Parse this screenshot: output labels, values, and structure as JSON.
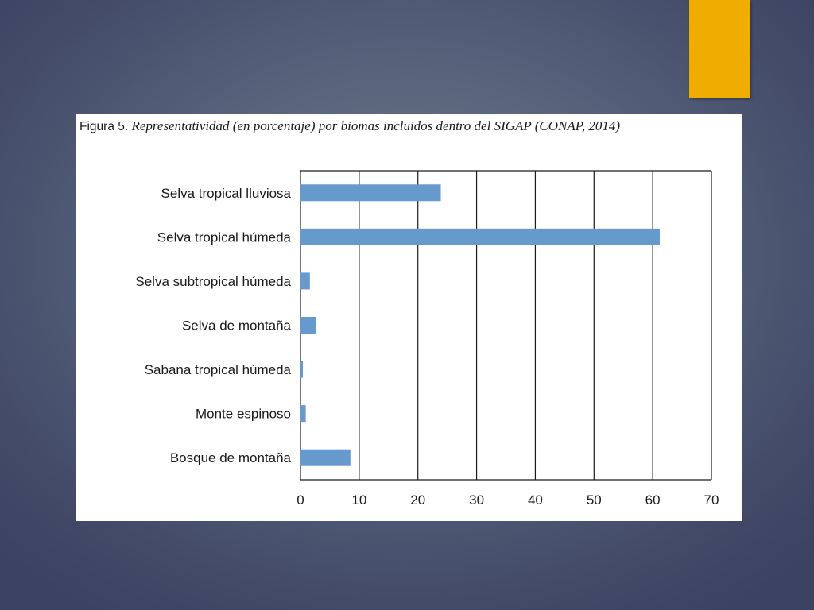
{
  "figure": {
    "caption_label": "Figura 5.",
    "caption_text": "Representatividad (en porcentaje) por biomas incluidos dentro del SIGAP (CONAP, 2014)"
  },
  "colors": {
    "bar": "#6699cc",
    "accent": "#f0ad00",
    "grid": "#1a1a1a"
  },
  "chart_data": {
    "type": "bar",
    "orientation": "horizontal",
    "categories": [
      "Selva tropical lluviosa",
      "Selva tropical húmeda",
      "Selva subtropical húmeda",
      "Selva de montaña",
      "Sabana tropical húmeda",
      "Monte espinoso",
      "Bosque de montaña"
    ],
    "values": [
      23.9,
      61.2,
      1.6,
      2.7,
      0.4,
      0.9,
      8.5
    ],
    "xlim": [
      0,
      70
    ],
    "xticks": [
      0,
      10,
      20,
      30,
      40,
      50,
      60,
      70
    ],
    "grid": "vertical"
  }
}
